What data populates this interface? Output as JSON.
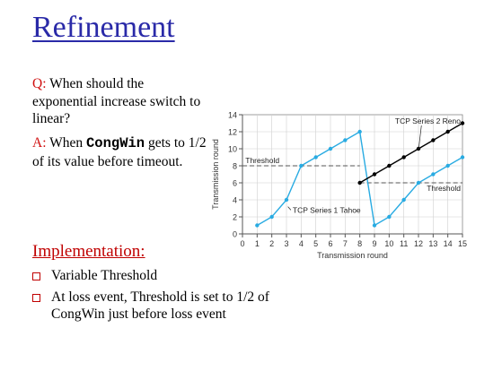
{
  "slide": {
    "title": "Refinement",
    "q_label": "Q:",
    "q_text": "When should the exponential increase switch to linear?",
    "a_label": "A:",
    "a_text_1": "When ",
    "a_code": "CongWin",
    "a_text_2": " gets to 1/2 of its value before timeout.",
    "impl_title": "Implementation:",
    "bullets": [
      "Variable Threshold",
      "At loss event, Threshold is set to 1/2 of CongWin just before loss event"
    ]
  },
  "colors": {
    "title": "#2a2aa8",
    "label_red": "#d01010",
    "tahoe": "#29abe2",
    "reno": "#000000"
  },
  "chart_data": {
    "type": "line",
    "xlabel": "Transmission round",
    "ylabel": "Transmission round",
    "xlim": [
      0,
      15
    ],
    "ylim": [
      0,
      14
    ],
    "xticks": [
      0,
      1,
      2,
      3,
      4,
      5,
      6,
      7,
      8,
      9,
      10,
      11,
      12,
      13,
      14,
      15
    ],
    "yticks": [
      0,
      2,
      4,
      6,
      8,
      10,
      12,
      14
    ],
    "series": [
      {
        "name": "TCP Series 1 Tahoe",
        "x": [
          1,
          2,
          3,
          4,
          5,
          6,
          7,
          8,
          9,
          10,
          11,
          12,
          13,
          14,
          15
        ],
        "y": [
          1,
          2,
          4,
          8,
          9,
          10,
          11,
          12,
          1,
          2,
          4,
          6,
          7,
          8,
          9
        ]
      },
      {
        "name": "TCP Series 2 Reno",
        "x": [
          8,
          9,
          10,
          11,
          12,
          13,
          14,
          15
        ],
        "y": [
          6,
          7,
          8,
          9,
          10,
          11,
          12,
          13
        ]
      }
    ],
    "thresholds": [
      {
        "label": "Threshold",
        "y": 8,
        "x_start": 0,
        "x_end": 8
      },
      {
        "label": "Threshold",
        "y": 6,
        "x_start": 8,
        "x_end": 15
      }
    ]
  }
}
